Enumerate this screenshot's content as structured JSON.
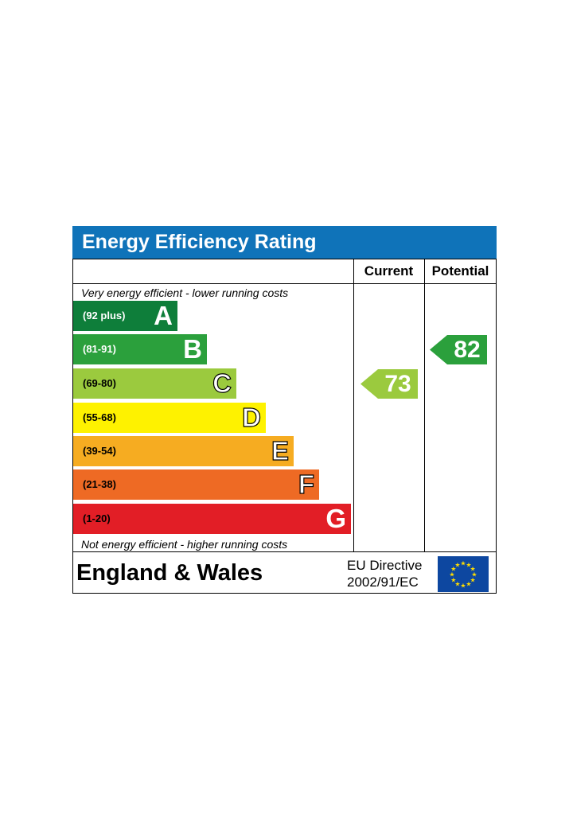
{
  "title": "Energy Efficiency Rating",
  "columns": {
    "current": "Current",
    "potential": "Potential"
  },
  "top_caption": "Very energy efficient - lower running costs",
  "bottom_caption": "Not energy efficient - higher running costs",
  "footer": {
    "region": "England & Wales",
    "directive_line1": "EU Directive",
    "directive_line2": "2002/91/EC",
    "flag_icon": "eu-flag-icon"
  },
  "chart_data": {
    "type": "bar",
    "categories": [
      "A",
      "B",
      "C",
      "D",
      "E",
      "F",
      "G"
    ],
    "ranges": [
      "(92 plus)",
      "(81-91)",
      "(69-80)",
      "(55-68)",
      "(39-54)",
      "(21-38)",
      "(1-20)"
    ],
    "colors": [
      "#0e7e3a",
      "#2ba03c",
      "#9bca3e",
      "#fef200",
      "#f6ac21",
      "#ee6a24",
      "#e21e26"
    ],
    "range_text_colors": [
      "#ffffff",
      "#ffffff",
      "#000000",
      "#000000",
      "#000000",
      "#000000",
      "#000000"
    ],
    "outlined_letters": [
      false,
      false,
      true,
      true,
      true,
      true,
      false
    ],
    "current": {
      "value": 73,
      "band": "C",
      "color": "#9bca3e"
    },
    "potential": {
      "value": 82,
      "band": "B",
      "color": "#2ba03c"
    }
  }
}
